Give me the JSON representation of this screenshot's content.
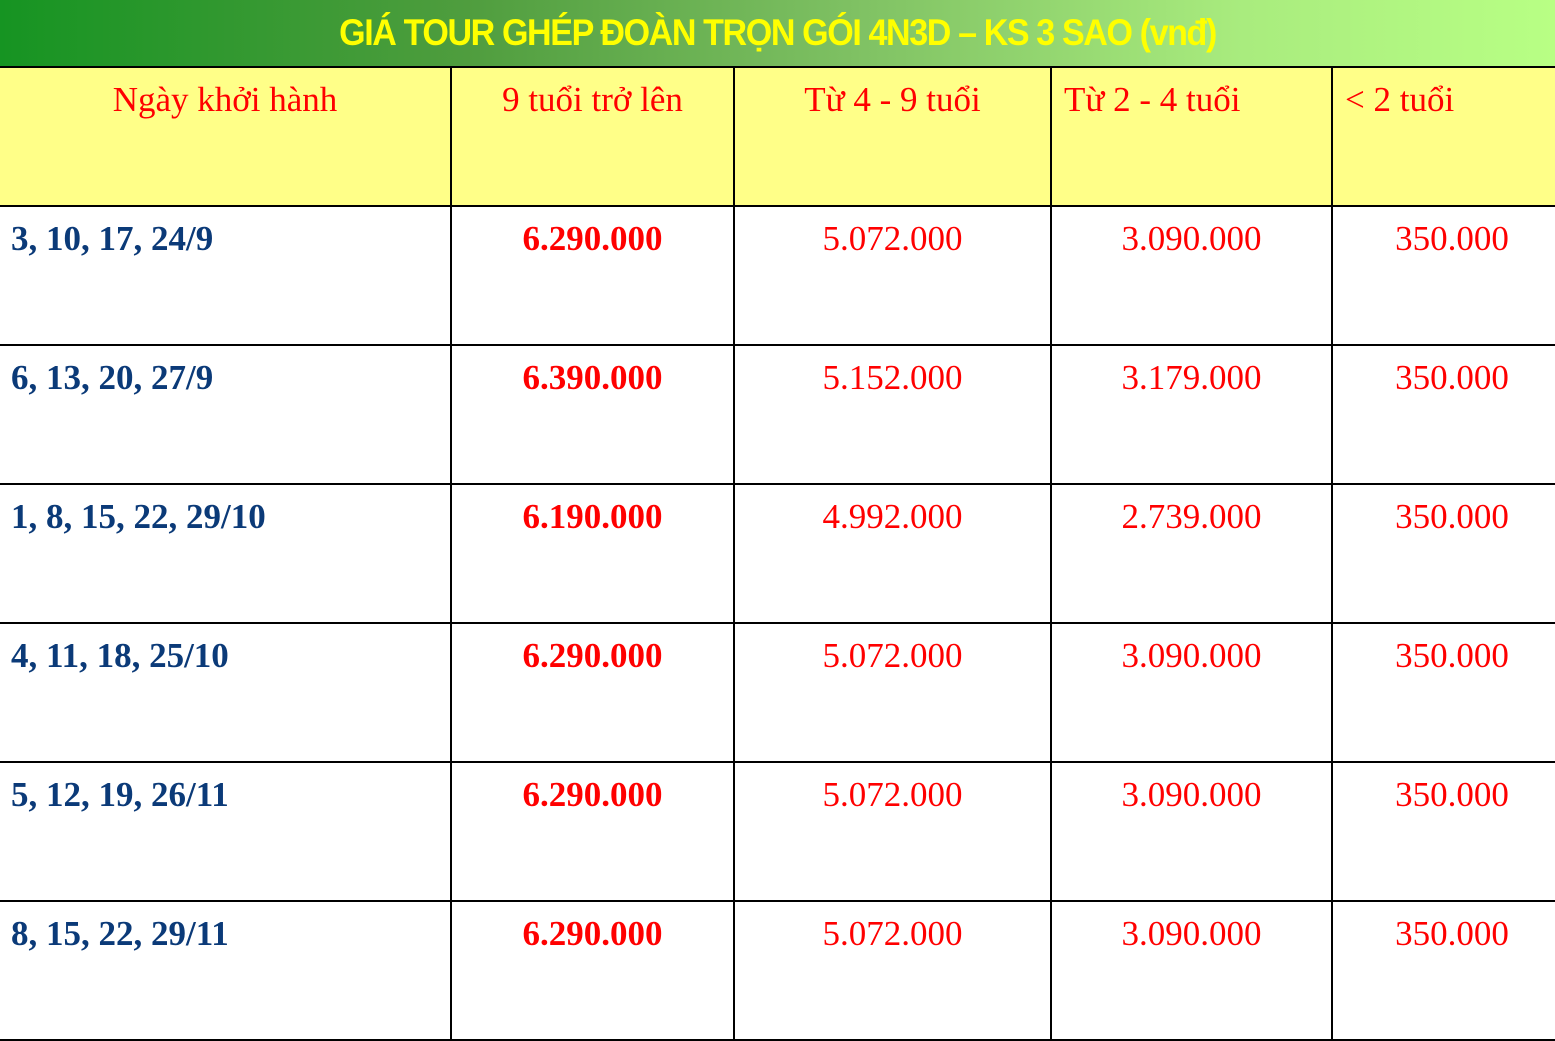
{
  "title": "GIÁ TOUR GHÉP ĐOÀN TRỌN GÓI 4N3D – KS 3 SAO (vnđ)",
  "colors": {
    "header_bg": "#ffff88",
    "price_text": "#ff0000",
    "date_text": "#0b3a78",
    "title_text": "#ffff00"
  },
  "columns": [
    "Ngày khởi hành",
    "9 tuổi trở lên",
    "Từ 4 - 9 tuổi",
    "Từ 2 - 4 tuổi",
    "< 2 tuổi"
  ],
  "rows": [
    [
      "3, 10, 17, 24/9",
      "6.290.000",
      "5.072.000",
      "3.090.000",
      "350.000"
    ],
    [
      "6, 13, 20, 27/9",
      "6.390.000",
      "5.152.000",
      "3.179.000",
      "350.000"
    ],
    [
      "1, 8, 15, 22, 29/10",
      "6.190.000",
      "4.992.000",
      "2.739.000",
      "350.000"
    ],
    [
      "4, 11, 18, 25/10",
      "6.290.000",
      "5.072.000",
      "3.090.000",
      "350.000"
    ],
    [
      "5, 12, 19, 26/11",
      "6.290.000",
      "5.072.000",
      "3.090.000",
      "350.000"
    ],
    [
      "8, 15, 22, 29/11",
      "6.290.000",
      "5.072.000",
      "3.090.000",
      "350.000"
    ]
  ]
}
